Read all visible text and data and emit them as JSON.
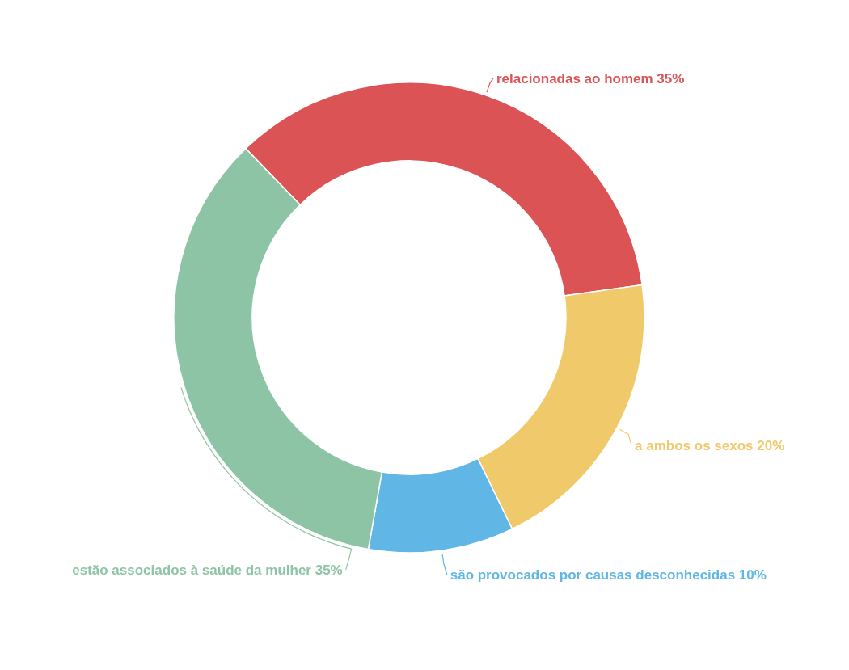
{
  "chart_data": {
    "type": "donut",
    "categories": [
      "relacionadas ao homem",
      "a ambos os sexos",
      "são provocados por causas desconhecidas",
      "estão associados à saúde da mulher"
    ],
    "values": [
      35,
      20,
      10,
      35
    ],
    "value_labels": [
      "35%",
      "20%",
      "10%",
      "35%"
    ],
    "colors": [
      "#dc5356",
      "#f0c96b",
      "#60b7e5",
      "#8ec4a6"
    ]
  }
}
